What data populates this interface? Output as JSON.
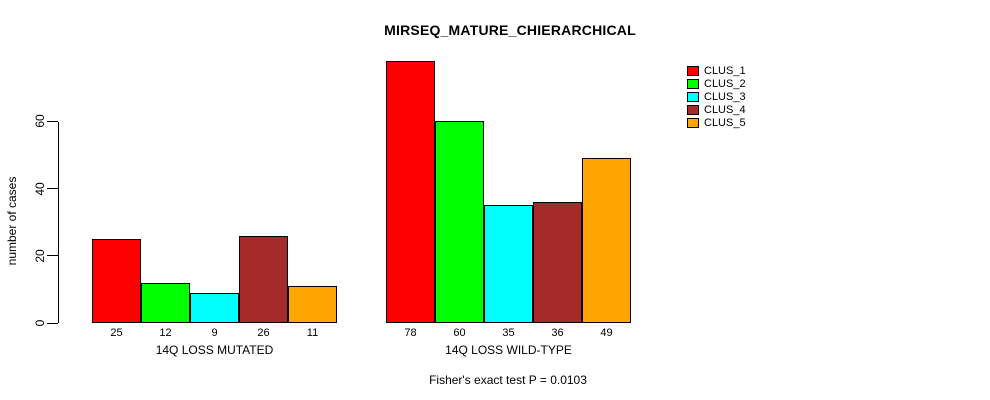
{
  "chart_data": {
    "type": "bar",
    "title": "MIRSEQ_MATURE_CHIERARCHICAL",
    "ylabel": "number of cases",
    "xlabel": "",
    "footnote": "Fisher's exact test P = 0.0103",
    "categories": [
      "14Q LOSS MUTATED",
      "14Q LOSS WILD-TYPE"
    ],
    "series": [
      {
        "name": "CLUS_1",
        "color": "#FF0000",
        "values": [
          25,
          78
        ]
      },
      {
        "name": "CLUS_2",
        "color": "#00FF00",
        "values": [
          12,
          60
        ]
      },
      {
        "name": "CLUS_3",
        "color": "#00FFFF",
        "values": [
          9,
          35
        ]
      },
      {
        "name": "CLUS_4",
        "color": "#A52A2A",
        "values": [
          26,
          36
        ]
      },
      {
        "name": "CLUS_5",
        "color": "#FFA500",
        "values": [
          11,
          49
        ]
      }
    ],
    "bar_value_labels_shown": true,
    "yticks": [
      0,
      20,
      40,
      60
    ],
    "ylim": [
      0,
      78
    ],
    "grid": false,
    "legend_position": "top-right",
    "background_color": "#FFFFFF",
    "axis_color": "#000000"
  }
}
